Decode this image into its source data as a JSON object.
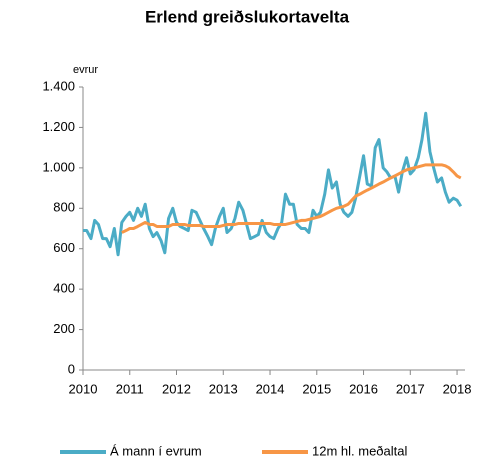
{
  "chart_data": {
    "type": "line",
    "title": "Erlend greiðslukortavelta",
    "y_unit": "evrur",
    "x": [
      2010,
      2010.08,
      2010.17,
      2010.25,
      2010.33,
      2010.42,
      2010.5,
      2010.58,
      2010.67,
      2010.75,
      2010.83,
      2010.92,
      2011,
      2011.08,
      2011.17,
      2011.25,
      2011.33,
      2011.42,
      2011.5,
      2011.58,
      2011.67,
      2011.75,
      2011.83,
      2011.92,
      2012,
      2012.08,
      2012.17,
      2012.25,
      2012.33,
      2012.42,
      2012.5,
      2012.58,
      2012.67,
      2012.75,
      2012.83,
      2012.92,
      2013,
      2013.08,
      2013.17,
      2013.25,
      2013.33,
      2013.42,
      2013.5,
      2013.58,
      2013.67,
      2013.75,
      2013.83,
      2013.92,
      2014,
      2014.08,
      2014.17,
      2014.25,
      2014.33,
      2014.42,
      2014.5,
      2014.58,
      2014.67,
      2014.75,
      2014.83,
      2014.92,
      2015,
      2015.08,
      2015.17,
      2015.25,
      2015.33,
      2015.42,
      2015.5,
      2015.58,
      2015.67,
      2015.75,
      2015.83,
      2015.92,
      2016,
      2016.08,
      2016.17,
      2016.25,
      2016.33,
      2016.42,
      2016.5,
      2016.58,
      2016.67,
      2016.75,
      2016.83,
      2016.92,
      2017,
      2017.08,
      2017.17,
      2017.25,
      2017.33,
      2017.42,
      2017.5,
      2017.58,
      2017.67,
      2017.75,
      2017.83,
      2017.92,
      2018,
      2018.08
    ],
    "series": [
      {
        "name": "Á mann í evrum",
        "color": "#4bacc6",
        "values": [
          690,
          690,
          650,
          740,
          720,
          650,
          650,
          610,
          700,
          570,
          730,
          760,
          780,
          740,
          800,
          760,
          820,
          700,
          660,
          680,
          640,
          580,
          750,
          800,
          730,
          710,
          700,
          690,
          790,
          780,
          740,
          700,
          660,
          620,
          700,
          760,
          800,
          680,
          700,
          750,
          830,
          790,
          720,
          650,
          660,
          670,
          740,
          680,
          660,
          650,
          700,
          730,
          870,
          820,
          820,
          720,
          700,
          700,
          680,
          790,
          760,
          780,
          870,
          990,
          900,
          930,
          820,
          780,
          760,
          780,
          850,
          960,
          1060,
          920,
          910,
          1100,
          1140,
          1000,
          980,
          950,
          960,
          880,
          980,
          1050,
          970,
          990,
          1050,
          1140,
          1270,
          1080,
          1000,
          930,
          950,
          880,
          830,
          850,
          840,
          810
        ]
      },
      {
        "name": "12m hl. meðaltal",
        "color": "#f79646",
        "values": [
          null,
          null,
          null,
          null,
          null,
          null,
          null,
          null,
          null,
          null,
          680,
          690,
          700,
          700,
          710,
          720,
          730,
          720,
          720,
          710,
          710,
          710,
          710,
          720,
          720,
          720,
          720,
          715,
          715,
          715,
          715,
          710,
          710,
          710,
          710,
          710,
          715,
          720,
          720,
          720,
          725,
          725,
          725,
          725,
          725,
          725,
          725,
          725,
          725,
          720,
          720,
          720,
          720,
          725,
          730,
          735,
          740,
          740,
          745,
          750,
          755,
          760,
          770,
          780,
          790,
          800,
          805,
          810,
          820,
          840,
          860,
          870,
          880,
          890,
          900,
          910,
          920,
          930,
          940,
          950,
          960,
          970,
          980,
          990,
          995,
          1000,
          1005,
          1010,
          1015,
          1015,
          1015,
          1015,
          1015,
          1010,
          1000,
          980,
          960,
          950
        ]
      }
    ],
    "xlim": [
      2010,
      2018.17
    ],
    "xticks": [
      2010,
      2011,
      2012,
      2013,
      2014,
      2015,
      2016,
      2017,
      2018
    ],
    "ylim": [
      0,
      1400
    ],
    "yticks": [
      0,
      200,
      400,
      600,
      800,
      {
        "value": 1000,
        "label": "1.000"
      },
      {
        "value": 1200,
        "label": "1.200"
      },
      {
        "value": 1400,
        "label": "1.400"
      }
    ],
    "grid": false,
    "legend": "bottom"
  }
}
